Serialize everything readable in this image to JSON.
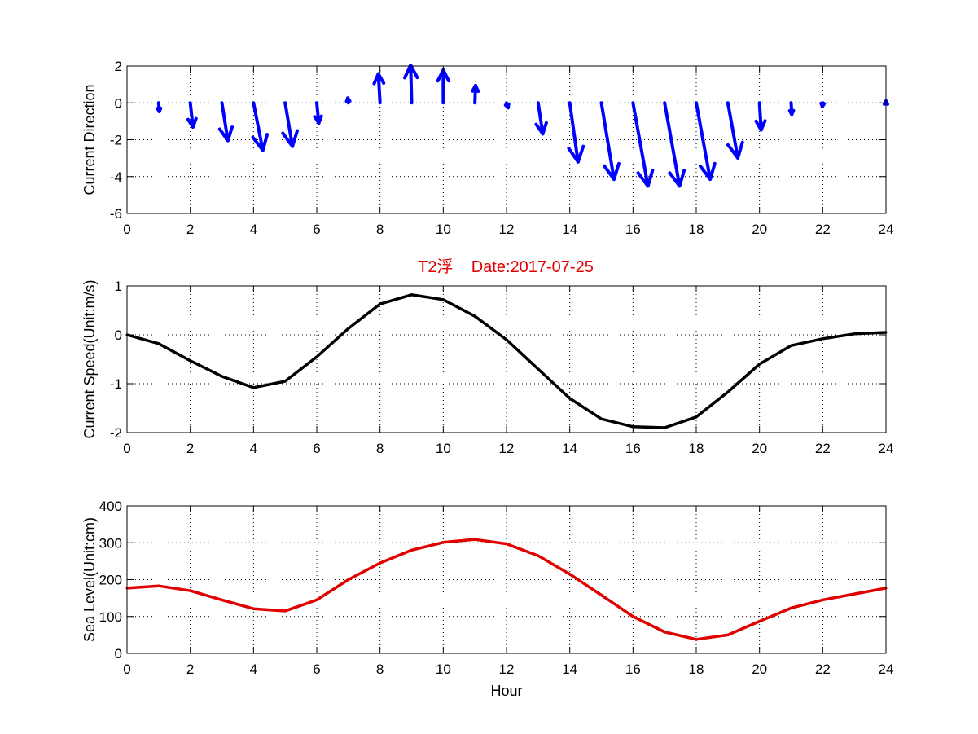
{
  "figure": {
    "title": "T2浮    Date:2017-07-25",
    "title_color": "#e00000"
  },
  "chart_data": [
    {
      "type": "quiver",
      "ylabel": "Current Direction",
      "xlim": [
        0,
        24
      ],
      "ylim": [
        -6,
        2
      ],
      "xticks": [
        0,
        2,
        4,
        6,
        8,
        10,
        12,
        14,
        16,
        18,
        20,
        22,
        24
      ],
      "yticks": [
        2,
        0,
        -2,
        -4,
        -6
      ],
      "grid": true,
      "color": "#0000ff",
      "vectors": [
        {
          "x": 1,
          "u": 0.02,
          "v": -0.45
        },
        {
          "x": 2,
          "u": 0.08,
          "v": -1.25
        },
        {
          "x": 3,
          "u": 0.18,
          "v": -1.95
        },
        {
          "x": 4,
          "u": 0.28,
          "v": -2.45
        },
        {
          "x": 5,
          "u": 0.22,
          "v": -2.25
        },
        {
          "x": 6,
          "u": 0.06,
          "v": -1.05
        },
        {
          "x": 7,
          "u": -0.02,
          "v": 0.25
        },
        {
          "x": 8,
          "u": -0.05,
          "v": 1.5
        },
        {
          "x": 9,
          "u": -0.03,
          "v": 1.95
        },
        {
          "x": 10,
          "u": 0.0,
          "v": 1.7
        },
        {
          "x": 11,
          "u": 0.02,
          "v": 0.9
        },
        {
          "x": 12,
          "u": 0.05,
          "v": -0.25
        },
        {
          "x": 13,
          "u": 0.14,
          "v": -1.6
        },
        {
          "x": 14,
          "u": 0.25,
          "v": -3.05
        },
        {
          "x": 15,
          "u": 0.38,
          "v": -3.95
        },
        {
          "x": 16,
          "u": 0.45,
          "v": -4.3
        },
        {
          "x": 17,
          "u": 0.45,
          "v": -4.3
        },
        {
          "x": 18,
          "u": 0.42,
          "v": -3.95
        },
        {
          "x": 19,
          "u": 0.3,
          "v": -2.85
        },
        {
          "x": 20,
          "u": 0.05,
          "v": -1.4
        },
        {
          "x": 21,
          "u": 0.02,
          "v": -0.6
        },
        {
          "x": 22,
          "u": -0.01,
          "v": -0.2
        },
        {
          "x": 24,
          "u": 0.0,
          "v": 0.1
        }
      ]
    },
    {
      "type": "line",
      "ylabel": "Current Speed(Unit:m/s)",
      "xlim": [
        0,
        24
      ],
      "ylim": [
        -2,
        1
      ],
      "xticks": [
        0,
        2,
        4,
        6,
        8,
        10,
        12,
        14,
        16,
        18,
        20,
        22,
        24
      ],
      "yticks": [
        1,
        0,
        -1,
        -2
      ],
      "grid": true,
      "color": "#000000",
      "x": [
        0,
        1,
        2,
        3,
        4,
        5,
        6,
        7,
        8,
        9,
        10,
        11,
        12,
        13,
        14,
        15,
        16,
        17,
        18,
        19,
        20,
        21,
        22,
        23,
        24
      ],
      "y": [
        0.0,
        -0.18,
        -0.53,
        -0.85,
        -1.08,
        -0.95,
        -0.45,
        0.13,
        0.63,
        0.82,
        0.72,
        0.38,
        -0.1,
        -0.7,
        -1.3,
        -1.72,
        -1.88,
        -1.9,
        -1.68,
        -1.17,
        -0.6,
        -0.22,
        -0.08,
        0.02,
        0.05
      ]
    },
    {
      "type": "line",
      "xlabel": "Hour",
      "ylabel": "Sea Level(Unit:cm)",
      "xlim": [
        0,
        24
      ],
      "ylim": [
        0,
        400
      ],
      "xticks": [
        0,
        2,
        4,
        6,
        8,
        10,
        12,
        14,
        16,
        18,
        20,
        22,
        24
      ],
      "yticks": [
        400,
        300,
        200,
        100,
        0
      ],
      "grid": true,
      "color": "#e00000",
      "x": [
        0,
        1,
        2,
        3,
        4,
        5,
        6,
        7,
        8,
        9,
        10,
        11,
        12,
        13,
        14,
        15,
        16,
        17,
        18,
        19,
        20,
        21,
        22,
        23,
        24
      ],
      "y": [
        177,
        183,
        170,
        145,
        121,
        115,
        145,
        200,
        245,
        280,
        301,
        309,
        297,
        265,
        215,
        158,
        100,
        58,
        38,
        50,
        87,
        123,
        145,
        161,
        177
      ]
    }
  ]
}
